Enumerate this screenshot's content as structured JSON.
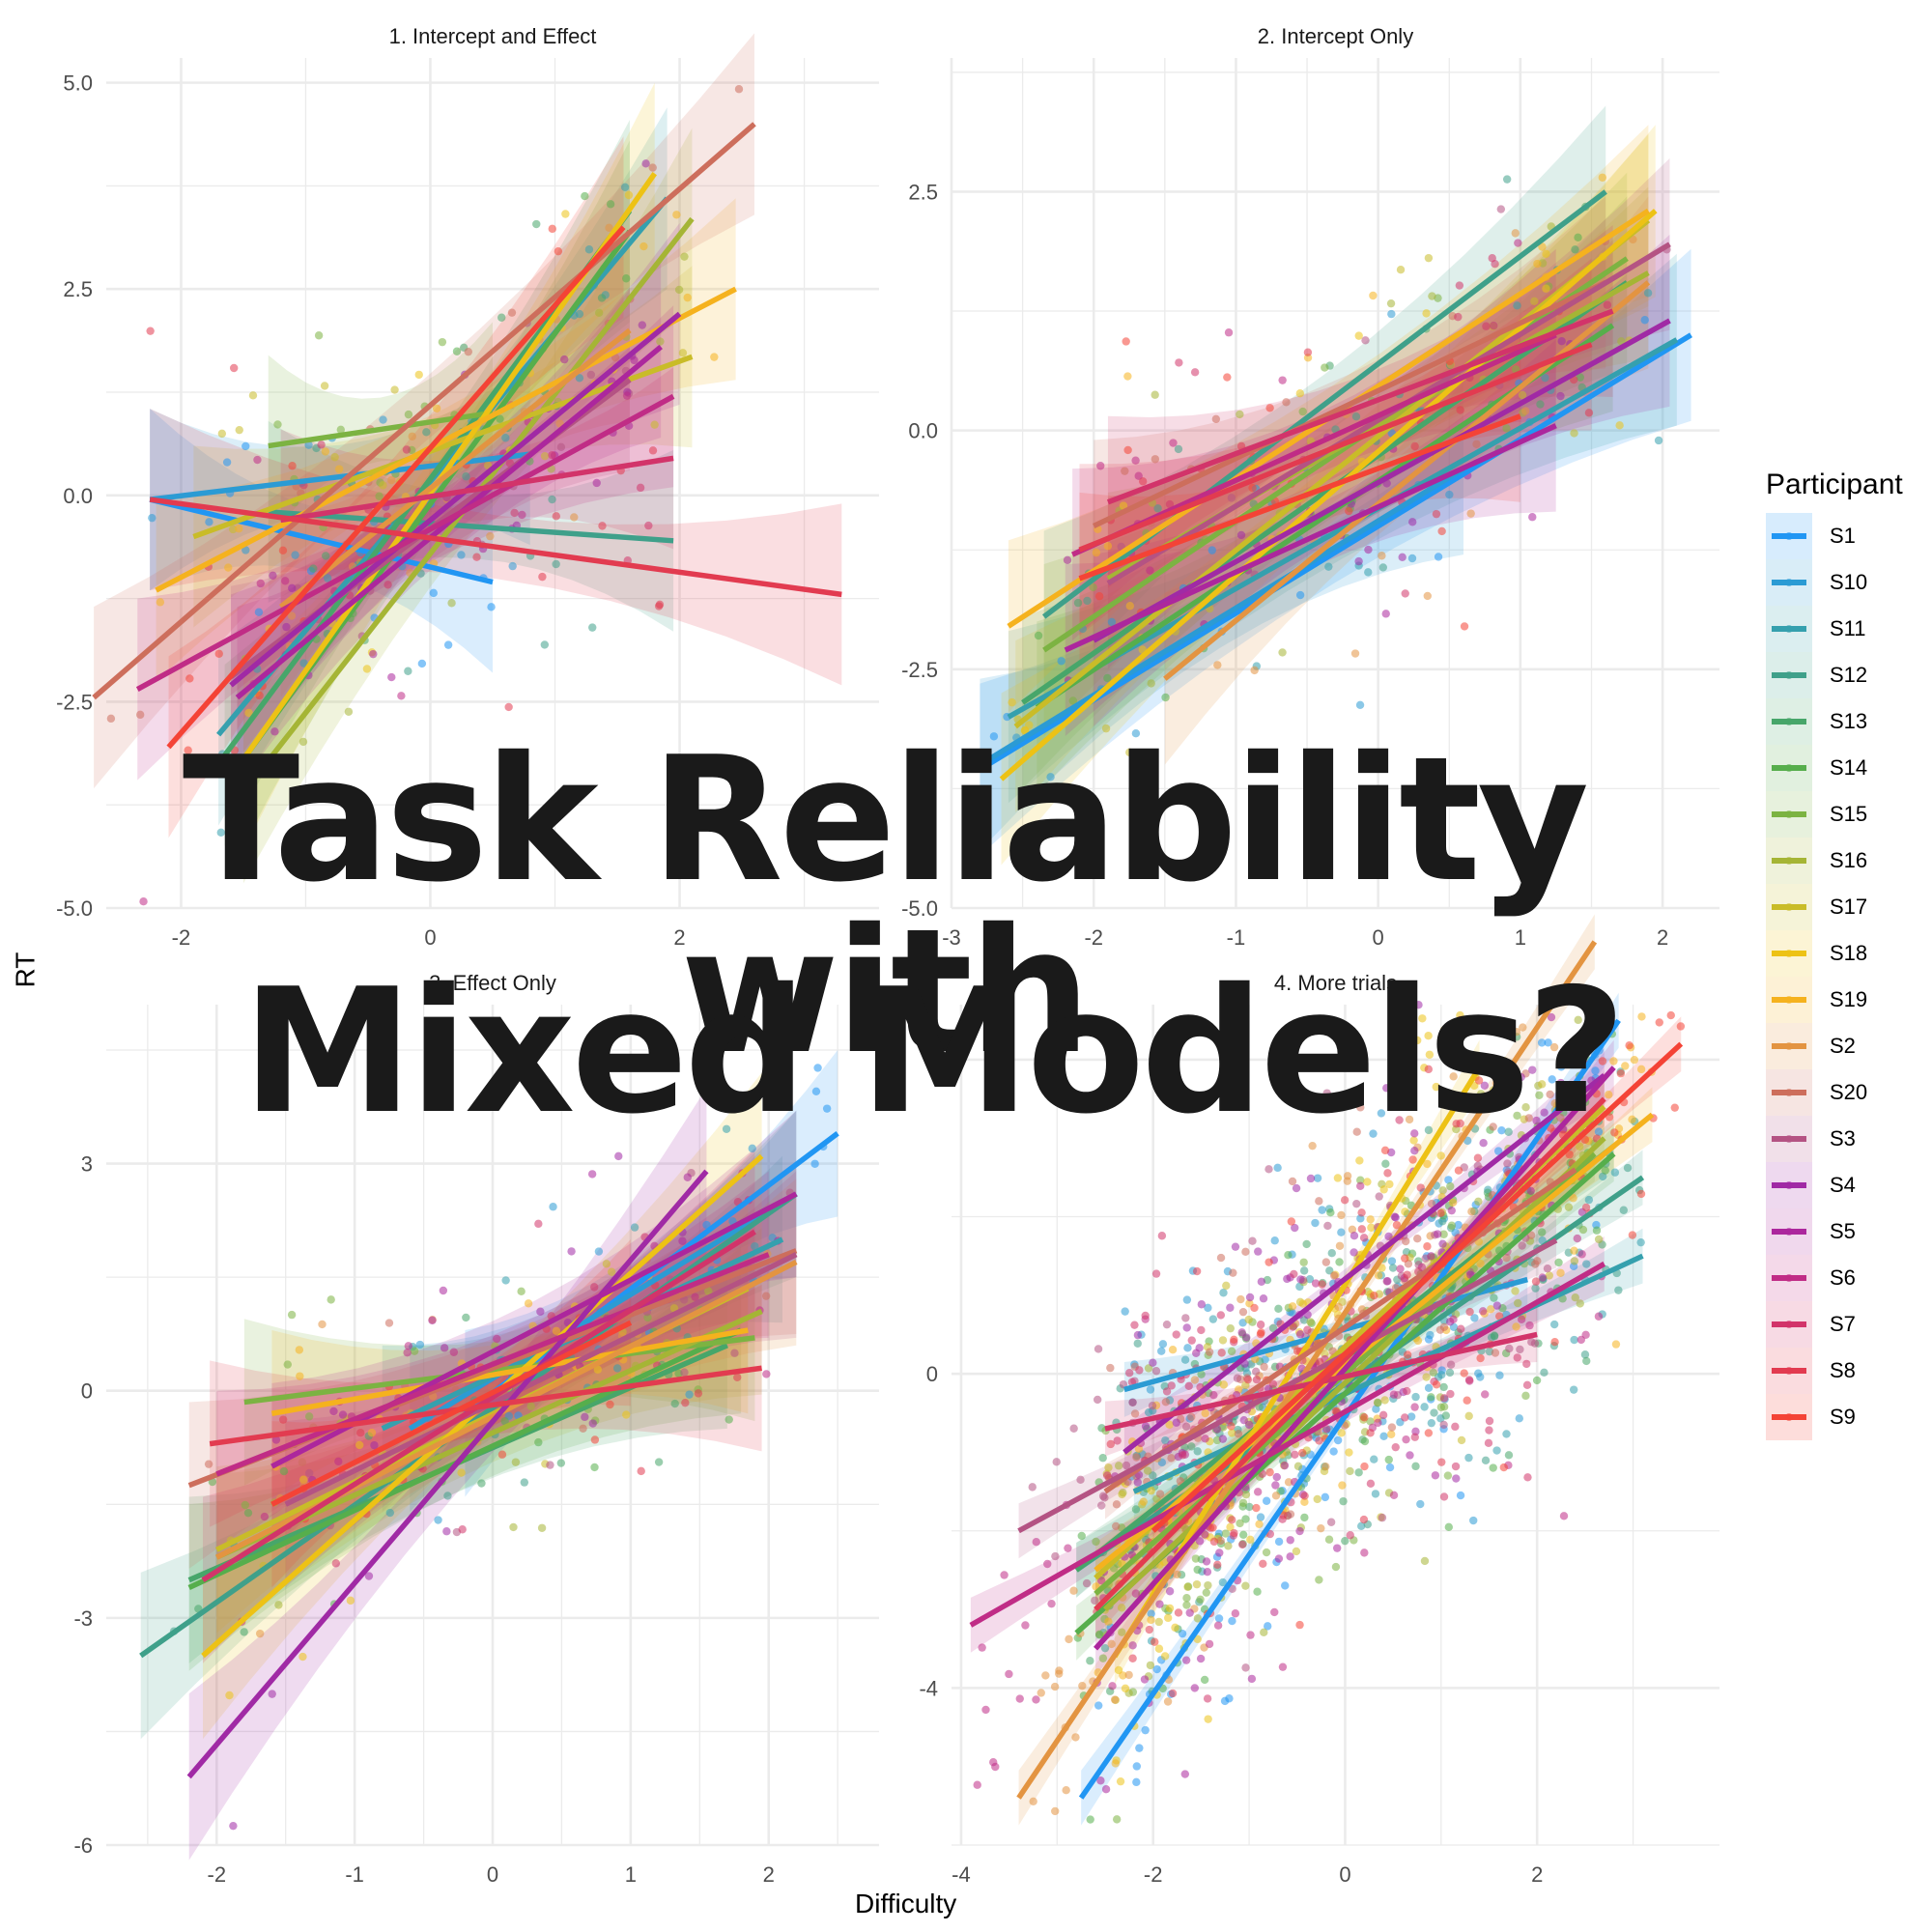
{
  "overlay": {
    "line1": "Task Reliability with",
    "line2": "Mixed Models?"
  },
  "axes": {
    "xlabel": "Difficulty",
    "ylabel": "RT"
  },
  "legend": {
    "title": "Participant",
    "items": [
      {
        "label": "S1",
        "color": "#2196F3"
      },
      {
        "label": "S10",
        "color": "#2B9BD4"
      },
      {
        "label": "S11",
        "color": "#35A0AE"
      },
      {
        "label": "S12",
        "color": "#3FA08A"
      },
      {
        "label": "S13",
        "color": "#47A66A"
      },
      {
        "label": "S14",
        "color": "#56AE4C"
      },
      {
        "label": "S15",
        "color": "#7CB342"
      },
      {
        "label": "S16",
        "color": "#A5B535"
      },
      {
        "label": "S17",
        "color": "#C9BC28"
      },
      {
        "label": "S18",
        "color": "#EDC215"
      },
      {
        "label": "S19",
        "color": "#F5B21E"
      },
      {
        "label": "S2",
        "color": "#E39441"
      },
      {
        "label": "S20",
        "color": "#CD6E5C"
      },
      {
        "label": "S3",
        "color": "#B45383"
      },
      {
        "label": "S4",
        "color": "#A02AA5"
      },
      {
        "label": "S5",
        "color": "#AC279D"
      },
      {
        "label": "S6",
        "color": "#C02C86"
      },
      {
        "label": "S7",
        "color": "#D2346A"
      },
      {
        "label": "S8",
        "color": "#E23B50"
      },
      {
        "label": "S9",
        "color": "#F44336"
      }
    ]
  },
  "chart_data": [
    {
      "type": "scatter",
      "title": "1. Intercept and Effect",
      "xlabel": "Difficulty",
      "ylabel": "RT",
      "xlim": [
        -2.6,
        3.6
      ],
      "ylim": [
        -5.0,
        5.3
      ],
      "xticks": [
        -2,
        0,
        2
      ],
      "yticks": [
        -5.0,
        -2.5,
        0.0,
        2.5,
        5.0
      ],
      "ytick_labels": [
        "-5.0",
        "-2.5",
        "0.0",
        "2.5",
        "5.0"
      ],
      "grid": true,
      "overlay": "per-participant linear fit with 95% CI ribbon",
      "series": [
        {
          "name": "S1",
          "x": [
            -2.25,
            0.5
          ],
          "y": [
            -0.05,
            -1.05
          ]
        },
        {
          "name": "S10",
          "x": [
            -2.25,
            0.8
          ],
          "y": [
            -0.05,
            0.5
          ]
        },
        {
          "name": "S11",
          "x": [
            -1.7,
            1.9
          ],
          "y": [
            -2.9,
            3.6
          ]
        },
        {
          "name": "S12",
          "x": [
            -1.3,
            1.95
          ],
          "y": [
            -0.2,
            -0.55
          ]
        },
        {
          "name": "S13",
          "x": [
            -1.65,
            1.6
          ],
          "y": [
            -3.15,
            3.45
          ]
        },
        {
          "name": "S14",
          "x": [
            -1.55,
            1.6
          ],
          "y": [
            -3.3,
            3.2
          ]
        },
        {
          "name": "S15",
          "x": [
            -1.3,
            0.5
          ],
          "y": [
            0.6,
            1.0
          ]
        },
        {
          "name": "S16",
          "x": [
            -1.5,
            2.1
          ],
          "y": [
            -3.6,
            3.35
          ]
        },
        {
          "name": "S17",
          "x": [
            -1.9,
            2.1
          ],
          "y": [
            -0.5,
            1.68
          ]
        },
        {
          "name": "S18",
          "x": [
            -1.5,
            1.8
          ],
          "y": [
            -3.2,
            3.9
          ]
        },
        {
          "name": "S19",
          "x": [
            -2.2,
            2.45
          ],
          "y": [
            -1.15,
            2.5
          ]
        },
        {
          "name": "S2",
          "x": [
            -1.2,
            1.6
          ],
          "y": [
            -1.35,
            2.0
          ]
        },
        {
          "name": "S20",
          "x": [
            -2.7,
            2.6
          ],
          "y": [
            -2.45,
            4.5
          ]
        },
        {
          "name": "S3",
          "x": [
            -1.6,
            1.6
          ],
          "y": [
            -2.2,
            1.4
          ]
        },
        {
          "name": "S4",
          "x": [
            -1.6,
            2.0
          ],
          "y": [
            -2.3,
            2.2
          ]
        },
        {
          "name": "S5",
          "x": [
            -1.55,
            1.85
          ],
          "y": [
            -2.45,
            1.8
          ]
        },
        {
          "name": "S6",
          "x": [
            -2.35,
            1.95
          ],
          "y": [
            -2.35,
            1.2
          ]
        },
        {
          "name": "S7",
          "x": [
            -1.2,
            1.95
          ],
          "y": [
            -0.3,
            0.45
          ]
        },
        {
          "name": "S8",
          "x": [
            -2.25,
            3.3
          ],
          "y": [
            -0.05,
            -1.2
          ]
        },
        {
          "name": "S9",
          "x": [
            -2.1,
            1.55
          ],
          "y": [
            -3.05,
            3.25
          ]
        }
      ]
    },
    {
      "type": "scatter",
      "title": "2. Intercept Only",
      "xlabel": "Difficulty",
      "ylabel": "RT",
      "xlim": [
        -3.0,
        2.4
      ],
      "ylim": [
        -5.0,
        3.9
      ],
      "xticks": [
        -3,
        -2,
        -1,
        0,
        1,
        2
      ],
      "yticks": [
        -5.0,
        -2.5,
        0.0,
        2.5
      ],
      "ytick_labels": [
        "-5.0",
        "-2.5",
        "0.0",
        "2.5"
      ],
      "grid": true,
      "overlay": "per-participant linear fit with 95% CI ribbon",
      "series": [
        {
          "name": "S1",
          "x": [
            -2.8,
            2.2
          ],
          "y": [
            -3.55,
            1.0
          ]
        },
        {
          "name": "S10",
          "x": [
            -2.8,
            0.6
          ],
          "y": [
            -3.5,
            -0.4
          ]
        },
        {
          "name": "S11",
          "x": [
            -2.6,
            2.1
          ],
          "y": [
            -3.0,
            0.95
          ]
        },
        {
          "name": "S12",
          "x": [
            -2.35,
            1.6
          ],
          "y": [
            -1.95,
            2.5
          ]
        },
        {
          "name": "S13",
          "x": [
            -2.5,
            1.75
          ],
          "y": [
            -2.85,
            1.55
          ]
        },
        {
          "name": "S14",
          "x": [
            -2.4,
            1.65
          ],
          "y": [
            -2.9,
            1.1
          ]
        },
        {
          "name": "S15",
          "x": [
            -2.35,
            1.75
          ],
          "y": [
            -2.3,
            1.8
          ]
        },
        {
          "name": "S16",
          "x": [
            -1.9,
            1.9
          ],
          "y": [
            -1.55,
            1.65
          ]
        },
        {
          "name": "S17",
          "x": [
            -2.55,
            1.9
          ],
          "y": [
            -3.1,
            2.2
          ]
        },
        {
          "name": "S18",
          "x": [
            -2.65,
            1.95
          ],
          "y": [
            -3.65,
            2.3
          ]
        },
        {
          "name": "S19",
          "x": [
            -2.6,
            1.9
          ],
          "y": [
            -2.05,
            2.3
          ]
        },
        {
          "name": "S2",
          "x": [
            -1.5,
            1.9
          ],
          "y": [
            -2.6,
            1.55
          ]
        },
        {
          "name": "S20",
          "x": [
            -2.0,
            1.6
          ],
          "y": [
            -1.0,
            1.55
          ]
        },
        {
          "name": "S3",
          "x": [
            -1.9,
            2.05
          ],
          "y": [
            -1.6,
            1.95
          ]
        },
        {
          "name": "S4",
          "x": [
            -2.0,
            2.05
          ],
          "y": [
            -2.2,
            1.15
          ]
        },
        {
          "name": "S5",
          "x": [
            -2.2,
            1.25
          ],
          "y": [
            -2.3,
            0.05
          ]
        },
        {
          "name": "S6",
          "x": [
            -2.15,
            1.25
          ],
          "y": [
            -1.3,
            1.0
          ]
        },
        {
          "name": "S7",
          "x": [
            -1.9,
            1.65
          ],
          "y": [
            -0.75,
            1.25
          ]
        },
        {
          "name": "S8",
          "x": [
            -2.1,
            1.5
          ],
          "y": [
            -1.25,
            0.9
          ]
        },
        {
          "name": "S9",
          "x": [
            -2.1,
            1.0
          ],
          "y": [
            -1.55,
            0.15
          ]
        }
      ]
    },
    {
      "type": "scatter",
      "title": "3. Effect Only",
      "xlabel": "Difficulty",
      "ylabel": "RT",
      "xlim": [
        -2.8,
        2.8
      ],
      "ylim": [
        -6.0,
        5.1
      ],
      "xticks": [
        -2,
        -1,
        0,
        1,
        2
      ],
      "yticks": [
        -6,
        -3,
        0,
        3
      ],
      "grid": true,
      "overlay": "per-participant linear fit with 95% CI ribbon",
      "series": [
        {
          "name": "S1",
          "x": [
            -0.2,
            2.5
          ],
          "y": [
            -0.3,
            3.4
          ]
        },
        {
          "name": "S10",
          "x": [
            -0.6,
            2.2
          ],
          "y": [
            -0.5,
            2.6
          ]
        },
        {
          "name": "S11",
          "x": [
            -0.8,
            2.1
          ],
          "y": [
            -0.5,
            2.0
          ]
        },
        {
          "name": "S12",
          "x": [
            -2.55,
            2.2
          ],
          "y": [
            -3.5,
            2.6
          ]
        },
        {
          "name": "S13",
          "x": [
            -2.2,
            1.7
          ],
          "y": [
            -2.5,
            0.6
          ]
        },
        {
          "name": "S14",
          "x": [
            -2.2,
            1.8
          ],
          "y": [
            -2.6,
            0.8
          ]
        },
        {
          "name": "S15",
          "x": [
            -1.8,
            1.9
          ],
          "y": [
            -0.15,
            0.7
          ]
        },
        {
          "name": "S16",
          "x": [
            -2.0,
            1.95
          ],
          "y": [
            -2.2,
            1.05
          ]
        },
        {
          "name": "S17",
          "x": [
            -2.0,
            1.85
          ],
          "y": [
            -2.1,
            1.35
          ]
        },
        {
          "name": "S18",
          "x": [
            -2.1,
            1.95
          ],
          "y": [
            -3.5,
            3.1
          ]
        },
        {
          "name": "S19",
          "x": [
            -1.6,
            1.85
          ],
          "y": [
            -0.3,
            0.8
          ]
        },
        {
          "name": "S2",
          "x": [
            -2.0,
            2.2
          ],
          "y": [
            -2.2,
            1.7
          ]
        },
        {
          "name": "S20",
          "x": [
            -2.2,
            2.2
          ],
          "y": [
            -1.25,
            1.85
          ]
        },
        {
          "name": "S3",
          "x": [
            -1.5,
            2.2
          ],
          "y": [
            -1.5,
            1.8
          ]
        },
        {
          "name": "S4",
          "x": [
            -2.2,
            1.55
          ],
          "y": [
            -5.1,
            2.9
          ]
        },
        {
          "name": "S5",
          "x": [
            -1.6,
            2.2
          ],
          "y": [
            -1.0,
            2.6
          ]
        },
        {
          "name": "S6",
          "x": [
            -2.0,
            2.0
          ],
          "y": [
            -1.1,
            1.8
          ]
        },
        {
          "name": "S7",
          "x": [
            -2.1,
            1.9
          ],
          "y": [
            -2.5,
            2.1
          ]
        },
        {
          "name": "S8",
          "x": [
            -2.05,
            1.95
          ],
          "y": [
            -0.7,
            0.3
          ]
        },
        {
          "name": "S9",
          "x": [
            -1.6,
            1.0
          ],
          "y": [
            -1.5,
            0.9
          ]
        }
      ]
    },
    {
      "type": "scatter",
      "title": "4. More trials",
      "xlabel": "Difficulty",
      "ylabel": "RT",
      "xlim": [
        -4.1,
        3.9
      ],
      "ylim": [
        -6.0,
        4.7
      ],
      "xticks": [
        -4,
        -2,
        0,
        2
      ],
      "yticks": [
        -4,
        0,
        4
      ],
      "grid": true,
      "overlay": "per-participant linear fit with 95% CI ribbon",
      "series": [
        {
          "name": "S1",
          "x": [
            -2.75,
            2.85
          ],
          "y": [
            -5.4,
            4.5
          ]
        },
        {
          "name": "S10",
          "x": [
            -2.3,
            1.9
          ],
          "y": [
            -0.2,
            1.2
          ]
        },
        {
          "name": "S11",
          "x": [
            -2.2,
            3.1
          ],
          "y": [
            -1.5,
            1.5
          ]
        },
        {
          "name": "S12",
          "x": [
            -2.8,
            3.1
          ],
          "y": [
            -2.5,
            2.5
          ]
        },
        {
          "name": "S13",
          "x": [
            -2.8,
            2.8
          ],
          "y": [
            -2.5,
            2.9
          ]
        },
        {
          "name": "S14",
          "x": [
            -2.8,
            2.8
          ],
          "y": [
            -3.3,
            2.8
          ]
        },
        {
          "name": "S15",
          "x": [
            -2.6,
            2.6
          ],
          "y": [
            -2.8,
            2.8
          ]
        },
        {
          "name": "S16",
          "x": [
            -2.5,
            2.7
          ],
          "y": [
            -3.0,
            3.0
          ]
        },
        {
          "name": "S17",
          "x": [
            -2.6,
            2.7
          ],
          "y": [
            -2.6,
            3.4
          ]
        },
        {
          "name": "S18",
          "x": [
            -2.4,
            1.4
          ],
          "y": [
            -3.6,
            3.9
          ]
        },
        {
          "name": "S19",
          "x": [
            -2.6,
            3.2
          ],
          "y": [
            -2.5,
            3.3
          ]
        },
        {
          "name": "S2",
          "x": [
            -3.4,
            2.6
          ],
          "y": [
            -5.4,
            5.5
          ]
        },
        {
          "name": "S20",
          "x": [
            -2.5,
            2.4
          ],
          "y": [
            -1.5,
            2.6
          ]
        },
        {
          "name": "S3",
          "x": [
            -3.4,
            2.2
          ],
          "y": [
            -2.0,
            1.7
          ]
        },
        {
          "name": "S4",
          "x": [
            -2.3,
            2.7
          ],
          "y": [
            -1.0,
            3.8
          ]
        },
        {
          "name": "S5",
          "x": [
            -2.6,
            2.8
          ],
          "y": [
            -3.5,
            3.9
          ]
        },
        {
          "name": "S6",
          "x": [
            -3.9,
            2.7
          ],
          "y": [
            -3.2,
            1.4
          ]
        },
        {
          "name": "S7",
          "x": [
            -2.5,
            2.0
          ],
          "y": [
            -0.7,
            0.5
          ]
        },
        {
          "name": "S8",
          "x": [
            -2.6,
            2.7
          ],
          "y": [
            -3.0,
            3.5
          ]
        },
        {
          "name": "S9",
          "x": [
            -2.0,
            3.5
          ],
          "y": [
            -2.0,
            4.2
          ]
        }
      ]
    }
  ]
}
